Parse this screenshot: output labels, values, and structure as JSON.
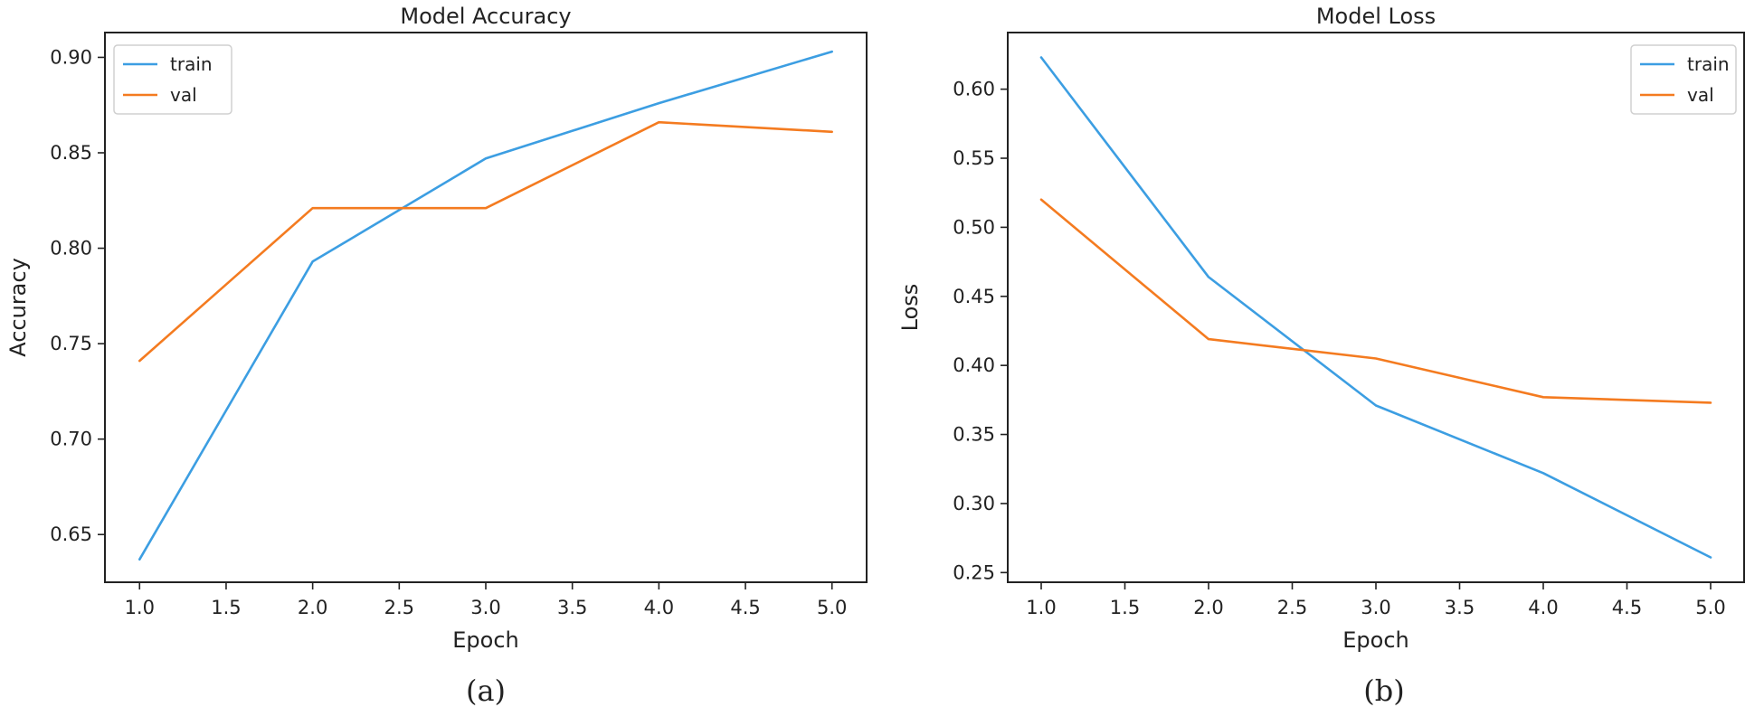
{
  "chart_data": [
    {
      "type": "line",
      "title": "Model Accuracy",
      "xlabel": "Epoch",
      "ylabel": "Accuracy",
      "caption": "(a)",
      "x": [
        1.0,
        2.0,
        3.0,
        4.0,
        5.0
      ],
      "xlim": [
        0.8,
        5.2
      ],
      "ylim": [
        0.625,
        0.913
      ],
      "xticks": [
        1.0,
        1.5,
        2.0,
        2.5,
        3.0,
        3.5,
        4.0,
        4.5,
        5.0
      ],
      "xtick_labels": [
        "1.0",
        "1.5",
        "2.0",
        "2.5",
        "3.0",
        "3.5",
        "4.0",
        "4.5",
        "5.0"
      ],
      "yticks": [
        0.65,
        0.7,
        0.75,
        0.8,
        0.85,
        0.9
      ],
      "ytick_labels": [
        "0.65",
        "0.70",
        "0.75",
        "0.80",
        "0.85",
        "0.90"
      ],
      "legend_position": "upper-left",
      "grid": false,
      "series": [
        {
          "name": "train",
          "color": "#3c9ee2",
          "values": [
            0.637,
            0.793,
            0.847,
            0.876,
            0.903
          ]
        },
        {
          "name": "val",
          "color": "#f47b20",
          "values": [
            0.741,
            0.821,
            0.821,
            0.866,
            0.861
          ]
        }
      ]
    },
    {
      "type": "line",
      "title": "Model Loss",
      "xlabel": "Epoch",
      "ylabel": "Loss",
      "caption": "(b)",
      "x": [
        1.0,
        2.0,
        3.0,
        4.0,
        5.0
      ],
      "xlim": [
        0.8,
        5.2
      ],
      "ylim": [
        0.243,
        0.641
      ],
      "xticks": [
        1.0,
        1.5,
        2.0,
        2.5,
        3.0,
        3.5,
        4.0,
        4.5,
        5.0
      ],
      "xtick_labels": [
        "1.0",
        "1.5",
        "2.0",
        "2.5",
        "3.0",
        "3.5",
        "4.0",
        "4.5",
        "5.0"
      ],
      "yticks": [
        0.25,
        0.3,
        0.35,
        0.4,
        0.45,
        0.5,
        0.55,
        0.6
      ],
      "ytick_labels": [
        "0.25",
        "0.30",
        "0.35",
        "0.40",
        "0.45",
        "0.50",
        "0.55",
        "0.60"
      ],
      "legend_position": "upper-right",
      "grid": false,
      "series": [
        {
          "name": "train",
          "color": "#3c9ee2",
          "values": [
            0.623,
            0.464,
            0.371,
            0.322,
            0.261
          ]
        },
        {
          "name": "val",
          "color": "#f47b20",
          "values": [
            0.52,
            0.419,
            0.405,
            0.377,
            0.373
          ]
        }
      ]
    }
  ]
}
